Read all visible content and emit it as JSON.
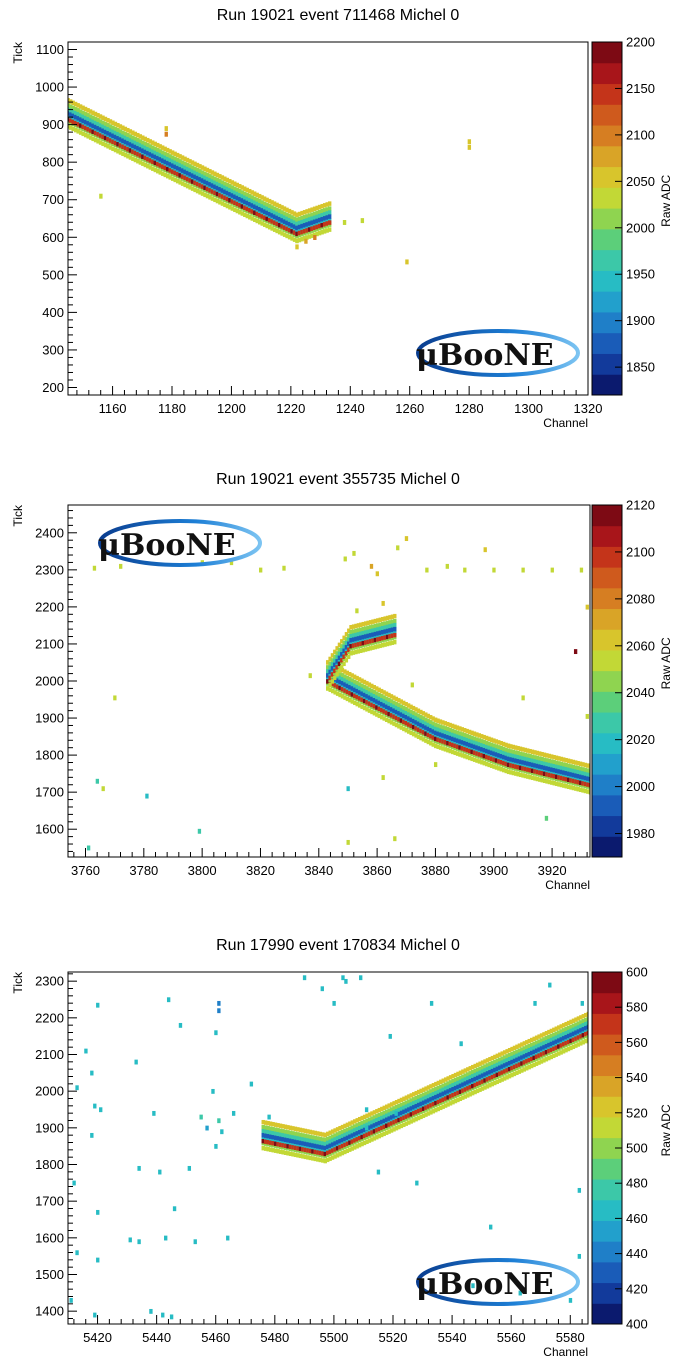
{
  "colorbar_palette": [
    "#0b1a6e",
    "#123a9b",
    "#1a5cb8",
    "#1f7fc8",
    "#22a0cc",
    "#27bcc4",
    "#3cc8a8",
    "#5ccf7a",
    "#8fd450",
    "#c2d836",
    "#d8c52c",
    "#d9a427",
    "#d67e22",
    "#cf5a1d",
    "#c4341a",
    "#a8151a",
    "#7d0a14"
  ],
  "logo": {
    "text": "μBooNE"
  },
  "chart_data": [
    {
      "type": "heatmap",
      "title": "Run 19021 event 711468 Michel 0",
      "xlabel": "Channel",
      "ylabel": "Tick",
      "zlabel": "Raw ADC",
      "xlim": [
        1145,
        1320
      ],
      "ylim": [
        180,
        1120
      ],
      "zlim": [
        1820,
        2200
      ],
      "xticks": [
        1160,
        1180,
        1200,
        1220,
        1240,
        1260,
        1280,
        1300,
        1320
      ],
      "yticks": [
        200,
        300,
        400,
        500,
        600,
        700,
        800,
        900,
        1000,
        1100
      ],
      "zticks": [
        1850,
        1900,
        1950,
        2000,
        2050,
        2100,
        2150,
        2200
      ],
      "logo_position": "bottom-right",
      "track_segments": [
        {
          "x": [
            1145,
            1222
          ],
          "y": [
            930,
            625
          ]
        },
        {
          "x": [
            1222,
            1233
          ],
          "y": [
            625,
            655
          ]
        }
      ],
      "hits": [
        {
          "x": 1178,
          "y": 890,
          "z": 2060
        },
        {
          "x": 1178,
          "y": 875,
          "z": 2090
        },
        {
          "x": 1280,
          "y": 855,
          "z": 2050
        },
        {
          "x": 1280,
          "y": 840,
          "z": 2050
        },
        {
          "x": 1156,
          "y": 710,
          "z": 2040
        },
        {
          "x": 1259,
          "y": 535,
          "z": 2050
        },
        {
          "x": 1238,
          "y": 640,
          "z": 2040
        },
        {
          "x": 1244,
          "y": 645,
          "z": 2040
        },
        {
          "x": 1222,
          "y": 575,
          "z": 2060
        },
        {
          "x": 1225,
          "y": 590,
          "z": 2080
        },
        {
          "x": 1228,
          "y": 600,
          "z": 2100
        }
      ]
    },
    {
      "type": "heatmap",
      "title": "Run 19021 event 355735 Michel 0",
      "xlabel": "Channel",
      "ylabel": "Tick",
      "zlabel": "Raw ADC",
      "xlim": [
        3754,
        3933
      ],
      "ylim": [
        1525,
        2475
      ],
      "zlim": [
        1970,
        2120
      ],
      "xticks": [
        3760,
        3780,
        3800,
        3820,
        3840,
        3860,
        3880,
        3900,
        3920
      ],
      "yticks": [
        1600,
        1700,
        1800,
        1900,
        2000,
        2100,
        2200,
        2300,
        2400
      ],
      "zticks": [
        1980,
        2000,
        2020,
        2040,
        2060,
        2080,
        2100,
        2120
      ],
      "logo_position": "top-left",
      "track_segments": [
        {
          "x": [
            3843,
            3880,
            3905,
            3933
          ],
          "y": [
            2015,
            1860,
            1790,
            1735
          ]
        },
        {
          "x": [
            3843,
            3851
          ],
          "y": [
            2015,
            2110
          ]
        },
        {
          "x": [
            3851,
            3866
          ],
          "y": [
            2110,
            2140
          ]
        }
      ],
      "hits": [
        {
          "x": 3763,
          "y": 2305,
          "z": 2050
        },
        {
          "x": 3772,
          "y": 2310,
          "z": 2050
        },
        {
          "x": 3800,
          "y": 2320,
          "z": 2050
        },
        {
          "x": 3810,
          "y": 2320,
          "z": 2050
        },
        {
          "x": 3820,
          "y": 2300,
          "z": 2050
        },
        {
          "x": 3828,
          "y": 2305,
          "z": 2050
        },
        {
          "x": 3849,
          "y": 2330,
          "z": 2050
        },
        {
          "x": 3852,
          "y": 2345,
          "z": 2050
        },
        {
          "x": 3858,
          "y": 2310,
          "z": 2070
        },
        {
          "x": 3860,
          "y": 2290,
          "z": 2060
        },
        {
          "x": 3867,
          "y": 2360,
          "z": 2050
        },
        {
          "x": 3870,
          "y": 2385,
          "z": 2060
        },
        {
          "x": 3877,
          "y": 2300,
          "z": 2050
        },
        {
          "x": 3884,
          "y": 2310,
          "z": 2050
        },
        {
          "x": 3897,
          "y": 2355,
          "z": 2060
        },
        {
          "x": 3890,
          "y": 2300,
          "z": 2050
        },
        {
          "x": 3900,
          "y": 2300,
          "z": 2050
        },
        {
          "x": 3910,
          "y": 2300,
          "z": 2050
        },
        {
          "x": 3920,
          "y": 2300,
          "z": 2050
        },
        {
          "x": 3930,
          "y": 2300,
          "z": 2050
        },
        {
          "x": 3862,
          "y": 2210,
          "z": 2060
        },
        {
          "x": 3853,
          "y": 2190,
          "z": 2050
        },
        {
          "x": 3837,
          "y": 2015,
          "z": 2050
        },
        {
          "x": 3770,
          "y": 1955,
          "z": 2050
        },
        {
          "x": 3872,
          "y": 1990,
          "z": 2050
        },
        {
          "x": 3910,
          "y": 1955,
          "z": 2050
        },
        {
          "x": 3932,
          "y": 1905,
          "z": 2050
        },
        {
          "x": 3928,
          "y": 2080,
          "z": 2120
        },
        {
          "x": 3932,
          "y": 2200,
          "z": 2060
        },
        {
          "x": 3764,
          "y": 1730,
          "z": 2030
        },
        {
          "x": 3766,
          "y": 1710,
          "z": 2050
        },
        {
          "x": 3781,
          "y": 1690,
          "z": 2020
        },
        {
          "x": 3862,
          "y": 1740,
          "z": 2050
        },
        {
          "x": 3880,
          "y": 1775,
          "z": 2050
        },
        {
          "x": 3799,
          "y": 1595,
          "z": 2030
        },
        {
          "x": 3850,
          "y": 1565,
          "z": 2050
        },
        {
          "x": 3866,
          "y": 1575,
          "z": 2050
        },
        {
          "x": 3761,
          "y": 1550,
          "z": 2030
        },
        {
          "x": 3918,
          "y": 1630,
          "z": 2040
        },
        {
          "x": 3850,
          "y": 1710,
          "z": 2020
        }
      ]
    },
    {
      "type": "heatmap",
      "title": "Run 17990 event 170834 Michel 0",
      "xlabel": "Channel",
      "ylabel": "Tick",
      "zlabel": "Raw ADC",
      "xlim": [
        5410,
        5586
      ],
      "ylim": [
        1365,
        2325
      ],
      "zlim": [
        400,
        600
      ],
      "xticks": [
        5420,
        5440,
        5460,
        5480,
        5500,
        5520,
        5540,
        5560,
        5580
      ],
      "yticks": [
        1400,
        1500,
        1600,
        1700,
        1800,
        1900,
        2000,
        2100,
        2200,
        2300
      ],
      "zticks": [
        400,
        420,
        440,
        460,
        480,
        500,
        520,
        540,
        560,
        580,
        600
      ],
      "logo_position": "bottom-right",
      "track_segments": [
        {
          "x": [
            5476,
            5497
          ],
          "y": [
            1880,
            1845
          ]
        },
        {
          "x": [
            5497,
            5586
          ],
          "y": [
            1845,
            2175
          ]
        }
      ],
      "hits": [
        {
          "x": 5416,
          "y": 2110,
          "z": 470
        },
        {
          "x": 5420,
          "y": 2235,
          "z": 470
        },
        {
          "x": 5444,
          "y": 2250,
          "z": 460
        },
        {
          "x": 5461,
          "y": 2240,
          "z": 440
        },
        {
          "x": 5461,
          "y": 2220,
          "z": 440
        },
        {
          "x": 5448,
          "y": 2180,
          "z": 470
        },
        {
          "x": 5460,
          "y": 2160,
          "z": 460
        },
        {
          "x": 5418,
          "y": 2050,
          "z": 470
        },
        {
          "x": 5413,
          "y": 2010,
          "z": 470
        },
        {
          "x": 5433,
          "y": 2080,
          "z": 460
        },
        {
          "x": 5419,
          "y": 1960,
          "z": 470
        },
        {
          "x": 5421,
          "y": 1950,
          "z": 470
        },
        {
          "x": 5439,
          "y": 1940,
          "z": 460
        },
        {
          "x": 5455,
          "y": 1930,
          "z": 480
        },
        {
          "x": 5457,
          "y": 1900,
          "z": 450
        },
        {
          "x": 5461,
          "y": 1920,
          "z": 480
        },
        {
          "x": 5462,
          "y": 1890,
          "z": 460
        },
        {
          "x": 5459,
          "y": 2000,
          "z": 460
        },
        {
          "x": 5466,
          "y": 1940,
          "z": 470
        },
        {
          "x": 5472,
          "y": 2020,
          "z": 470
        },
        {
          "x": 5418,
          "y": 1880,
          "z": 470
        },
        {
          "x": 5460,
          "y": 1850,
          "z": 470
        },
        {
          "x": 5451,
          "y": 1790,
          "z": 460
        },
        {
          "x": 5434,
          "y": 1790,
          "z": 470
        },
        {
          "x": 5441,
          "y": 1780,
          "z": 470
        },
        {
          "x": 5412,
          "y": 1750,
          "z": 470
        },
        {
          "x": 5446,
          "y": 1680,
          "z": 470
        },
        {
          "x": 5420,
          "y": 1670,
          "z": 470
        },
        {
          "x": 5431,
          "y": 1595,
          "z": 460
        },
        {
          "x": 5434,
          "y": 1590,
          "z": 460
        },
        {
          "x": 5443,
          "y": 1600,
          "z": 470
        },
        {
          "x": 5453,
          "y": 1590,
          "z": 460
        },
        {
          "x": 5464,
          "y": 1600,
          "z": 470
        },
        {
          "x": 5413,
          "y": 1560,
          "z": 470
        },
        {
          "x": 5420,
          "y": 1540,
          "z": 470
        },
        {
          "x": 5411,
          "y": 1430,
          "z": 470
        },
        {
          "x": 5419,
          "y": 1390,
          "z": 470
        },
        {
          "x": 5438,
          "y": 1400,
          "z": 460
        },
        {
          "x": 5442,
          "y": 1390,
          "z": 470
        },
        {
          "x": 5445,
          "y": 1385,
          "z": 470
        },
        {
          "x": 5490,
          "y": 2310,
          "z": 470
        },
        {
          "x": 5496,
          "y": 2280,
          "z": 470
        },
        {
          "x": 5500,
          "y": 2240,
          "z": 460
        },
        {
          "x": 5503,
          "y": 2310,
          "z": 470
        },
        {
          "x": 5504,
          "y": 2300,
          "z": 470
        },
        {
          "x": 5509,
          "y": 2310,
          "z": 470
        },
        {
          "x": 5519,
          "y": 2150,
          "z": 470
        },
        {
          "x": 5533,
          "y": 2240,
          "z": 470
        },
        {
          "x": 5543,
          "y": 2130,
          "z": 470
        },
        {
          "x": 5511,
          "y": 1950,
          "z": 470
        },
        {
          "x": 5521,
          "y": 1940,
          "z": 460
        },
        {
          "x": 5478,
          "y": 1930,
          "z": 470
        },
        {
          "x": 5511,
          "y": 1900,
          "z": 470
        },
        {
          "x": 5528,
          "y": 1750,
          "z": 470
        },
        {
          "x": 5515,
          "y": 1780,
          "z": 460
        },
        {
          "x": 5553,
          "y": 1630,
          "z": 460
        },
        {
          "x": 5583,
          "y": 1730,
          "z": 470
        },
        {
          "x": 5563,
          "y": 1450,
          "z": 470
        },
        {
          "x": 5580,
          "y": 1430,
          "z": 470
        },
        {
          "x": 5573,
          "y": 2290,
          "z": 470
        },
        {
          "x": 5568,
          "y": 2240,
          "z": 460
        },
        {
          "x": 5584,
          "y": 2240,
          "z": 470
        },
        {
          "x": 5583,
          "y": 1550,
          "z": 470
        },
        {
          "x": 5547,
          "y": 1470,
          "z": 470
        }
      ]
    }
  ]
}
